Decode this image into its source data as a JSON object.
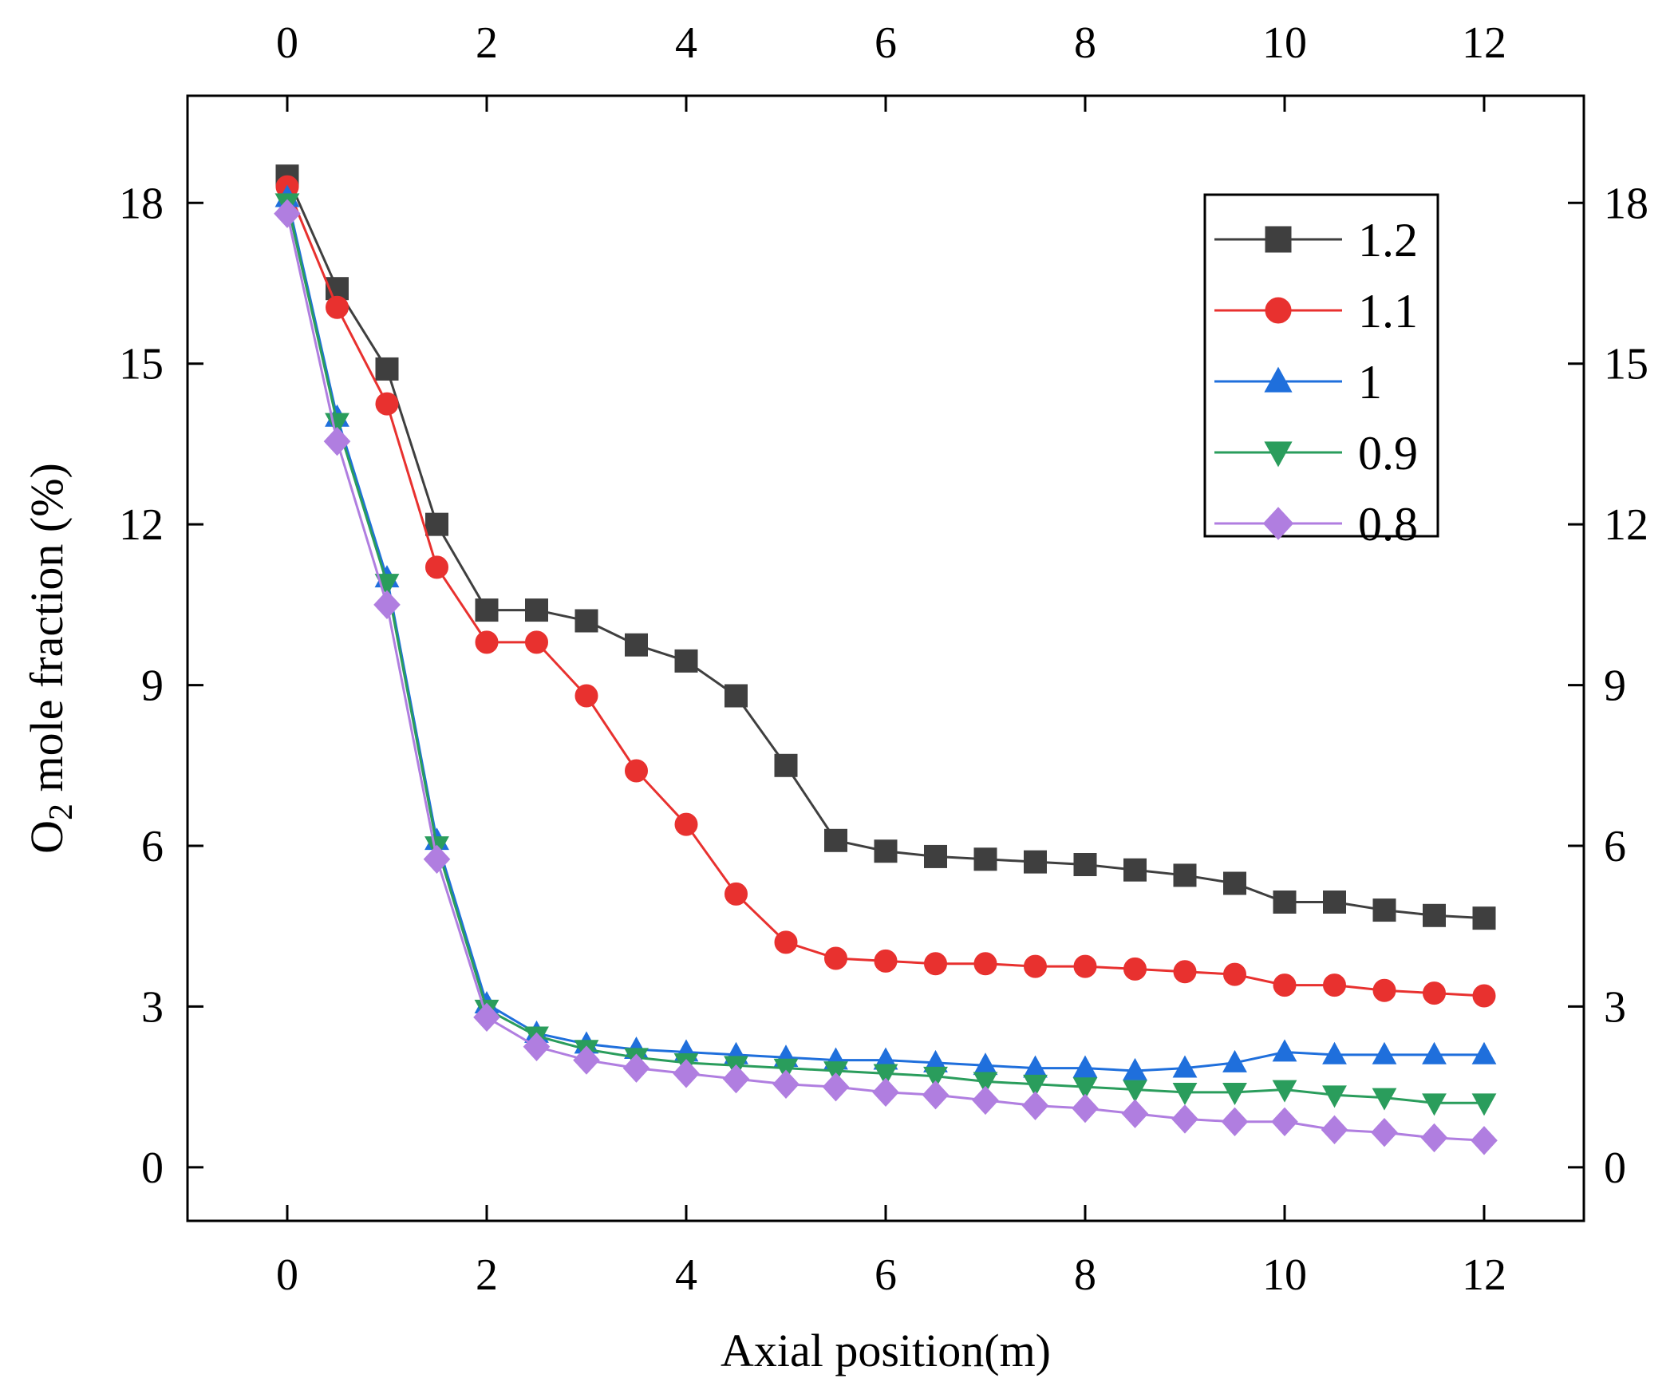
{
  "chart_data": {
    "type": "line",
    "title": "",
    "xlabel": "Axial position(m)",
    "ylabel_main": "O",
    "ylabel_sub": "2",
    "ylabel_rest": " mole fraction (%)",
    "xlim": [
      -1,
      13
    ],
    "ylim": [
      -1,
      20
    ],
    "xticks": [
      0,
      2,
      4,
      6,
      8,
      10,
      12
    ],
    "yticks": [
      0,
      3,
      6,
      9,
      12,
      15,
      18
    ],
    "grid": false,
    "legend_position": "top-right",
    "x": [
      0,
      0.5,
      1,
      1.5,
      2,
      2.5,
      3,
      3.5,
      4,
      4.5,
      5,
      5.5,
      6,
      6.5,
      7,
      7.5,
      8,
      8.5,
      9,
      9.5,
      10,
      10.5,
      11,
      11.5,
      12
    ],
    "series": [
      {
        "name": "1.2",
        "color": "#3f3f3f",
        "marker": "square",
        "values": [
          18.5,
          16.4,
          14.9,
          12.0,
          10.4,
          10.4,
          10.2,
          9.75,
          9.45,
          8.8,
          7.5,
          6.1,
          5.9,
          5.8,
          5.75,
          5.7,
          5.65,
          5.55,
          5.45,
          5.3,
          4.95,
          4.95,
          4.8,
          4.7,
          4.65
        ]
      },
      {
        "name": "1.1",
        "color": "#e8312f",
        "marker": "circle",
        "values": [
          18.3,
          16.05,
          14.25,
          11.2,
          9.8,
          9.8,
          8.8,
          7.4,
          6.4,
          5.1,
          4.2,
          3.9,
          3.85,
          3.8,
          3.8,
          3.75,
          3.75,
          3.7,
          3.65,
          3.6,
          3.4,
          3.4,
          3.3,
          3.25,
          3.2
        ]
      },
      {
        "name": "1",
        "color": "#1f6fdc",
        "marker": "triangle-up",
        "values": [
          18.1,
          14.0,
          11.0,
          6.1,
          3.05,
          2.5,
          2.3,
          2.2,
          2.15,
          2.1,
          2.05,
          2.0,
          2.0,
          1.95,
          1.9,
          1.85,
          1.85,
          1.8,
          1.85,
          1.95,
          2.15,
          2.1,
          2.1,
          2.1,
          2.1
        ]
      },
      {
        "name": "0.9",
        "color": "#2a9d5c",
        "marker": "triangle-down",
        "values": [
          18.0,
          13.9,
          10.9,
          6.0,
          2.95,
          2.45,
          2.2,
          2.05,
          1.95,
          1.9,
          1.85,
          1.8,
          1.75,
          1.7,
          1.6,
          1.55,
          1.5,
          1.45,
          1.4,
          1.4,
          1.45,
          1.35,
          1.3,
          1.2,
          1.2
        ]
      },
      {
        "name": "0.8",
        "color": "#b07ee0",
        "marker": "diamond",
        "values": [
          17.8,
          13.55,
          10.5,
          5.75,
          2.8,
          2.25,
          2.0,
          1.85,
          1.75,
          1.65,
          1.55,
          1.5,
          1.4,
          1.35,
          1.25,
          1.15,
          1.1,
          1.0,
          0.9,
          0.85,
          0.85,
          0.7,
          0.65,
          0.55,
          0.5
        ]
      }
    ]
  }
}
